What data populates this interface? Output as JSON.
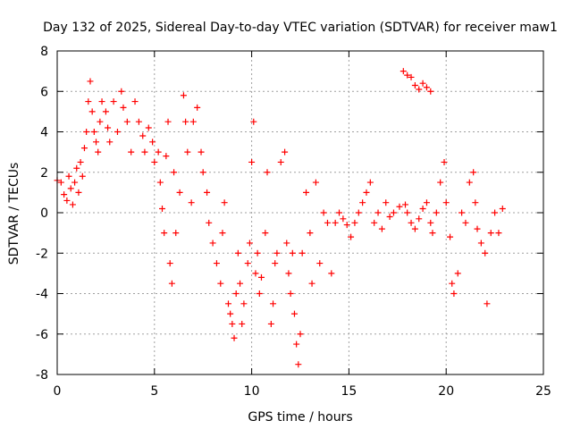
{
  "chart_data": {
    "type": "scatter",
    "title": "Day 132 of 2025, Sidereal Day-to-day VTEC variation (SDTVAR) for receiver maw1",
    "xlabel": "GPS time / hours",
    "ylabel": "SDTVAR / TECUs",
    "xlim": [
      0,
      25
    ],
    "ylim": [
      -8,
      8
    ],
    "xticks": [
      0,
      5,
      10,
      15,
      20,
      25
    ],
    "yticks": [
      -8,
      -6,
      -4,
      -2,
      0,
      2,
      4,
      6,
      8
    ],
    "grid": true,
    "marker": "plus",
    "color": "#ff0000",
    "series": [
      {
        "name": "SDTVAR",
        "points": [
          [
            0.0,
            1.6
          ],
          [
            0.2,
            1.5
          ],
          [
            0.35,
            0.9
          ],
          [
            0.5,
            0.6
          ],
          [
            0.6,
            1.8
          ],
          [
            0.7,
            1.2
          ],
          [
            0.8,
            0.4
          ],
          [
            0.9,
            1.5
          ],
          [
            1.0,
            2.2
          ],
          [
            1.1,
            1.0
          ],
          [
            1.2,
            2.5
          ],
          [
            1.3,
            1.8
          ],
          [
            1.4,
            3.2
          ],
          [
            1.5,
            4.0
          ],
          [
            1.6,
            5.5
          ],
          [
            1.7,
            6.5
          ],
          [
            1.8,
            5.0
          ],
          [
            1.9,
            4.0
          ],
          [
            2.0,
            3.5
          ],
          [
            2.1,
            3.0
          ],
          [
            2.2,
            4.5
          ],
          [
            2.3,
            5.5
          ],
          [
            2.5,
            5.0
          ],
          [
            2.6,
            4.2
          ],
          [
            2.7,
            3.5
          ],
          [
            2.9,
            5.5
          ],
          [
            3.1,
            4.0
          ],
          [
            3.3,
            6.0
          ],
          [
            3.4,
            5.2
          ],
          [
            3.6,
            4.5
          ],
          [
            3.8,
            3.0
          ],
          [
            4.0,
            5.5
          ],
          [
            4.2,
            4.5
          ],
          [
            4.4,
            3.8
          ],
          [
            4.5,
            3.0
          ],
          [
            4.7,
            4.2
          ],
          [
            4.9,
            3.5
          ],
          [
            5.0,
            2.5
          ],
          [
            5.2,
            3.0
          ],
          [
            5.3,
            1.5
          ],
          [
            5.4,
            0.2
          ],
          [
            5.5,
            -1.0
          ],
          [
            5.6,
            2.8
          ],
          [
            5.7,
            4.5
          ],
          [
            5.8,
            -2.5
          ],
          [
            5.9,
            -3.5
          ],
          [
            6.0,
            2.0
          ],
          [
            6.1,
            -1.0
          ],
          [
            6.3,
            1.0
          ],
          [
            6.5,
            5.8
          ],
          [
            6.6,
            4.5
          ],
          [
            6.7,
            3.0
          ],
          [
            6.9,
            0.5
          ],
          [
            7.0,
            4.5
          ],
          [
            7.2,
            5.2
          ],
          [
            7.4,
            3.0
          ],
          [
            7.5,
            2.0
          ],
          [
            7.7,
            1.0
          ],
          [
            7.8,
            -0.5
          ],
          [
            8.0,
            -1.5
          ],
          [
            8.2,
            -2.5
          ],
          [
            8.4,
            -3.5
          ],
          [
            8.5,
            -1.0
          ],
          [
            8.6,
            0.5
          ],
          [
            8.8,
            -4.5
          ],
          [
            8.9,
            -5.0
          ],
          [
            9.0,
            -5.5
          ],
          [
            9.1,
            -6.2
          ],
          [
            9.2,
            -4.0
          ],
          [
            9.3,
            -2.0
          ],
          [
            9.4,
            -3.5
          ],
          [
            9.5,
            -5.5
          ],
          [
            9.6,
            -4.5
          ],
          [
            9.8,
            -2.5
          ],
          [
            9.9,
            -1.5
          ],
          [
            10.0,
            2.5
          ],
          [
            10.1,
            4.5
          ],
          [
            10.2,
            -3.0
          ],
          [
            10.3,
            -2.0
          ],
          [
            10.4,
            -4.0
          ],
          [
            10.5,
            -3.2
          ],
          [
            10.7,
            -1.0
          ],
          [
            10.8,
            2.0
          ],
          [
            11.0,
            -5.5
          ],
          [
            11.1,
            -4.5
          ],
          [
            11.2,
            -2.5
          ],
          [
            11.3,
            -2.0
          ],
          [
            11.5,
            2.5
          ],
          [
            11.7,
            3.0
          ],
          [
            11.8,
            -1.5
          ],
          [
            11.9,
            -3.0
          ],
          [
            12.0,
            -4.0
          ],
          [
            12.1,
            -2.0
          ],
          [
            12.2,
            -5.0
          ],
          [
            12.3,
            -6.5
          ],
          [
            12.4,
            -7.5
          ],
          [
            12.5,
            -6.0
          ],
          [
            12.6,
            -2.0
          ],
          [
            12.8,
            1.0
          ],
          [
            13.0,
            -1.0
          ],
          [
            13.1,
            -3.5
          ],
          [
            13.3,
            1.5
          ],
          [
            13.5,
            -2.5
          ],
          [
            13.7,
            0.0
          ],
          [
            13.9,
            -0.5
          ],
          [
            14.1,
            -3.0
          ],
          [
            14.3,
            -0.5
          ],
          [
            14.5,
            0.0
          ],
          [
            14.7,
            -0.3
          ],
          [
            14.9,
            -0.6
          ],
          [
            15.1,
            -1.2
          ],
          [
            15.3,
            -0.5
          ],
          [
            15.5,
            0.0
          ],
          [
            15.7,
            0.5
          ],
          [
            15.9,
            1.0
          ],
          [
            16.1,
            1.5
          ],
          [
            16.3,
            -0.5
          ],
          [
            16.5,
            0.0
          ],
          [
            16.7,
            -0.8
          ],
          [
            16.9,
            0.5
          ],
          [
            17.1,
            -0.2
          ],
          [
            17.3,
            0.0
          ],
          [
            17.6,
            0.3
          ],
          [
            17.9,
            0.4
          ],
          [
            18.0,
            0.0
          ],
          [
            18.2,
            -0.5
          ],
          [
            18.4,
            -0.8
          ],
          [
            18.6,
            -0.3
          ],
          [
            18.8,
            0.2
          ],
          [
            19.0,
            0.5
          ],
          [
            19.2,
            -0.5
          ],
          [
            19.3,
            -1.0
          ],
          [
            19.5,
            0.0
          ],
          [
            19.7,
            1.5
          ],
          [
            19.9,
            2.5
          ],
          [
            20.0,
            0.5
          ],
          [
            20.2,
            -1.2
          ],
          [
            20.3,
            -3.5
          ],
          [
            20.4,
            -4.0
          ],
          [
            20.6,
            -3.0
          ],
          [
            20.8,
            0.0
          ],
          [
            21.0,
            -0.5
          ],
          [
            21.2,
            1.5
          ],
          [
            21.4,
            2.0
          ],
          [
            21.5,
            0.5
          ],
          [
            21.6,
            -0.8
          ],
          [
            21.8,
            -1.5
          ],
          [
            22.0,
            -2.0
          ],
          [
            22.1,
            -4.5
          ],
          [
            22.3,
            -1.0
          ],
          [
            22.5,
            0.0
          ],
          [
            22.7,
            -1.0
          ],
          [
            22.9,
            0.2
          ],
          [
            17.8,
            7.0
          ],
          [
            18.0,
            6.8
          ],
          [
            18.2,
            6.7
          ],
          [
            18.4,
            6.3
          ],
          [
            18.6,
            6.1
          ],
          [
            18.8,
            6.4
          ],
          [
            19.0,
            6.2
          ],
          [
            19.2,
            6.0
          ]
        ]
      }
    ]
  }
}
